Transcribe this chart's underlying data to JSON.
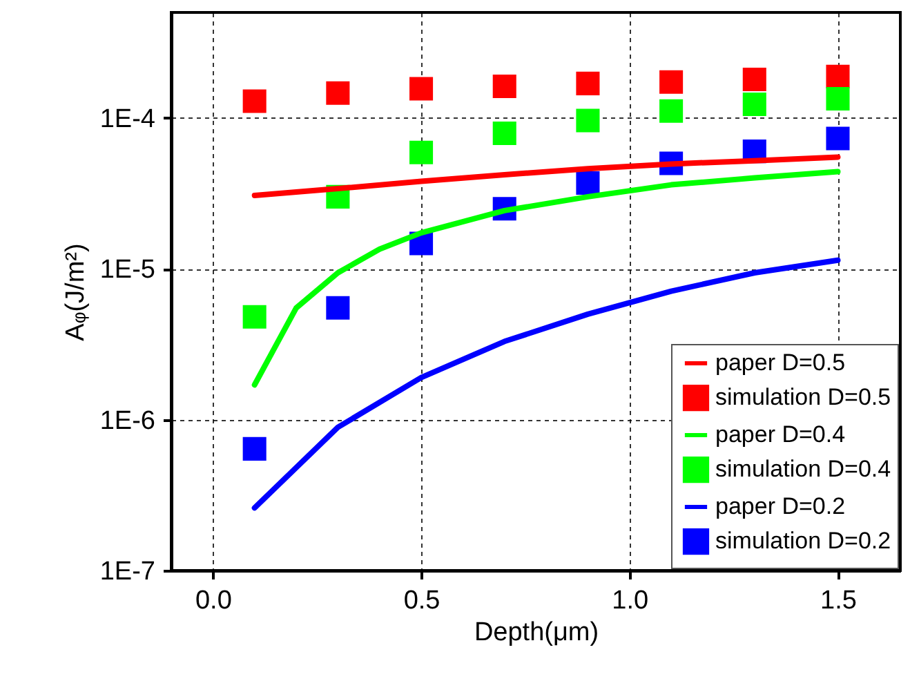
{
  "chart_data": {
    "type": "scatter",
    "xlabel": "Depth(μm)",
    "ylabel": "Aᵩ(J/m²)",
    "log": "y",
    "x": [
      0.1,
      0.3,
      0.5,
      0.7,
      0.9,
      1.1,
      1.3,
      1.5
    ],
    "xlim": [
      -0.1,
      1.65
    ],
    "xticks": [
      {
        "value": 0,
        "label": "0.0"
      },
      0.5,
      {
        "value": 1,
        "label": "1.0"
      },
      1.5
    ],
    "ylim": [
      1e-07,
      0.0005
    ],
    "yticks": [
      {
        "value": 1e-07,
        "label": "1E-7"
      },
      {
        "value": 1e-06,
        "label": "1E-6"
      },
      {
        "value": 1e-05,
        "label": "1E-5"
      },
      {
        "value": 0.0001,
        "label": "1E-4"
      }
    ],
    "grid": true,
    "legend": "bottom right",
    "series": [
      {
        "name": "paper D=0.5",
        "type": "line",
        "marker": "none",
        "color": "#ff0000",
        "x": [
          0.1,
          0.3,
          0.5,
          0.7,
          0.9,
          1.1,
          1.3,
          1.5
        ],
        "values": [
          3.06e-05,
          3.4e-05,
          3.8e-05,
          4.2e-05,
          4.6e-05,
          4.95e-05,
          5.2e-05,
          5.5e-05
        ]
      },
      {
        "name": "simulation D=0.5",
        "marker": "square",
        "color": "#ff0000",
        "values": [
          0.000129,
          0.000146,
          0.000156,
          0.000162,
          0.000169,
          0.000173,
          0.00018,
          0.000188
        ]
      },
      {
        "name": "paper D=0.4",
        "type": "line",
        "marker": "none",
        "color": "#00ff00",
        "x": [
          0.1,
          0.2,
          0.3,
          0.4,
          0.5,
          0.7,
          0.9,
          1.1,
          1.3,
          1.5
        ],
        "values": [
          1.7e-06,
          5.5e-06,
          9.4e-06,
          1.35e-05,
          1.73e-05,
          2.43e-05,
          3e-05,
          3.6e-05,
          4e-05,
          4.4e-05
        ]
      },
      {
        "name": "simulation D=0.4",
        "marker": "square",
        "color": "#00ff00",
        "values": [
          4.8e-06,
          3e-05,
          5.9e-05,
          7.9e-05,
          9.6e-05,
          0.000111,
          0.000123,
          0.000134
        ]
      },
      {
        "name": "paper D=0.2",
        "type": "line",
        "marker": "none",
        "color": "#0000ff",
        "x": [
          0.1,
          0.3,
          0.5,
          0.7,
          0.9,
          1.1,
          1.3,
          1.5
        ],
        "values": [
          2.6e-07,
          8.9e-07,
          1.9e-06,
          3.3e-06,
          5e-06,
          7.1e-06,
          9.4e-06,
          1.14e-05
        ]
      },
      {
        "name": "simulation D=0.2",
        "marker": "square",
        "color": "#0000ff",
        "values": [
          6.4e-07,
          5.5e-06,
          1.47e-05,
          2.5e-05,
          3.7e-05,
          5e-05,
          6e-05,
          7.3e-05
        ]
      }
    ]
  }
}
